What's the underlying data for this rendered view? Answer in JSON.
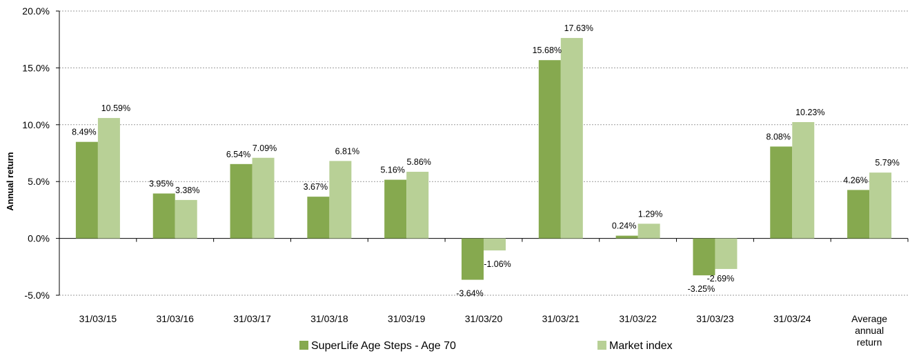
{
  "chart_data": {
    "type": "bar",
    "title": "",
    "xlabel": "",
    "ylabel": "Annual return",
    "ylim": [
      -5,
      20
    ],
    "yticks": [
      -5,
      0,
      5,
      10,
      15,
      20
    ],
    "ytick_labels": [
      "-5.0%",
      "0.0%",
      "5.0%",
      "10.0%",
      "15.0%",
      "20.0%"
    ],
    "grid": true,
    "legend_position": "bottom",
    "categories": [
      "31/03/15",
      "31/03/16",
      "31/03/17",
      "31/03/18",
      "31/03/19",
      "31/03/20",
      "31/03/21",
      "31/03/22",
      "31/03/23",
      "31/03/24",
      "Average annual return"
    ],
    "category_lines": [
      [
        "31/03/15"
      ],
      [
        "31/03/16"
      ],
      [
        "31/03/17"
      ],
      [
        "31/03/18"
      ],
      [
        "31/03/19"
      ],
      [
        "31/03/20"
      ],
      [
        "31/03/21"
      ],
      [
        "31/03/22"
      ],
      [
        "31/03/23"
      ],
      [
        "31/03/24"
      ],
      [
        "Average",
        "annual",
        "return"
      ]
    ],
    "series": [
      {
        "name": "SuperLife Age Steps - Age 70",
        "color": "#86a94f",
        "values": [
          8.49,
          3.95,
          6.54,
          3.67,
          5.16,
          -3.64,
          15.68,
          0.24,
          -3.25,
          8.08,
          4.26
        ],
        "labels": [
          "8.49%",
          "3.95%",
          "6.54%",
          "3.67%",
          "5.16%",
          "-3.64%",
          "15.68%",
          "0.24%",
          "-3.25%",
          "8.08%",
          "4.26%"
        ]
      },
      {
        "name": "Market index",
        "color": "#b8d096",
        "values": [
          10.59,
          3.38,
          7.09,
          6.81,
          5.86,
          -1.06,
          17.63,
          1.29,
          -2.69,
          10.23,
          5.79
        ],
        "labels": [
          "10.59%",
          "3.38%",
          "7.09%",
          "6.81%",
          "5.86%",
          "-1.06%",
          "17.63%",
          "1.29%",
          "-2.69%",
          "10.23%",
          "5.79%"
        ]
      }
    ]
  }
}
